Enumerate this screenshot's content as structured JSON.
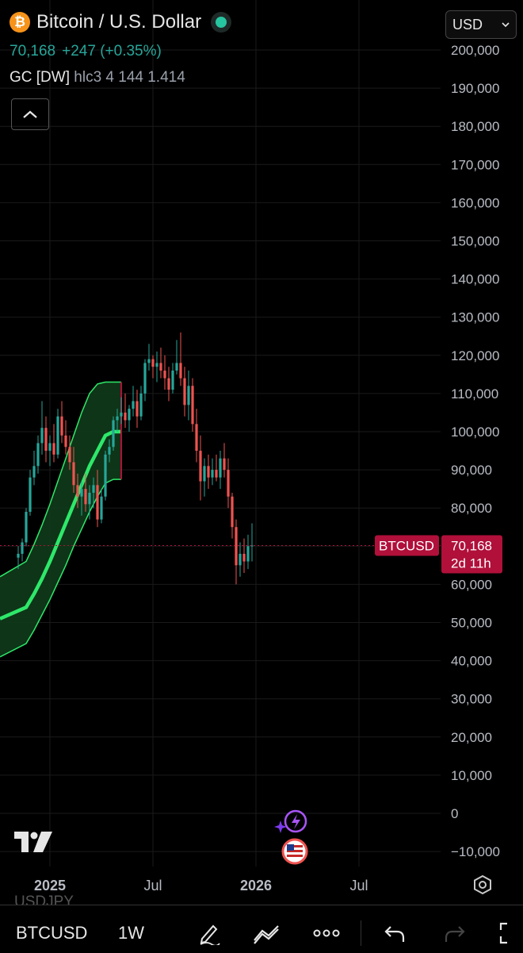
{
  "header": {
    "logo_glyph": "₿",
    "title": "Bitcoin / U.S. Dollar",
    "last_price": "70,168",
    "change": "+247 (+0.35%)",
    "indicator_name": "GC [DW]",
    "indicator_params": "hlc3 4 144 1.414",
    "currency": "USD",
    "icons": [
      "bitcoin-logo-icon",
      "live-status-dot-icon",
      "chevron-up-icon",
      "chevron-down-icon"
    ]
  },
  "chart_data": {
    "type": "candlestick",
    "symbol": "BTCUSD",
    "interval": "1W",
    "y_ticks": [
      "200,000",
      "190,000",
      "180,000",
      "170,000",
      "160,000",
      "150,000",
      "140,000",
      "130,000",
      "120,000",
      "110,000",
      "100,000",
      "90,000",
      "80,000",
      "70,000",
      "60,000",
      "50,000",
      "40,000",
      "30,000",
      "20,000",
      "10,000",
      "0",
      "−10,000"
    ],
    "ylim": [
      -13000,
      204000
    ],
    "x_ticks": [
      {
        "label": "2025",
        "week": 0,
        "bold": true
      },
      {
        "label": "Jul",
        "week": 26,
        "bold": false
      },
      {
        "label": "2026",
        "week": 52,
        "bold": true
      },
      {
        "label": "Jul",
        "week": 78,
        "bold": false
      }
    ],
    "last_price_label": "70,168",
    "countdown": "2d 11h",
    "symbol_tag": "BTCUSD",
    "last_close": 70168,
    "colors": {
      "up": "#26a69a",
      "down": "#ef5350",
      "band": "#2ee86a",
      "band_fill": "#0f3b1a",
      "price_tag": "#b0103a"
    },
    "band": {
      "week_start": -8,
      "week_step": 2,
      "mid": [
        51000,
        54000,
        57500,
        61500,
        66000,
        71000,
        76000,
        81000,
        86000,
        91000,
        95000,
        99000,
        100000,
        100000
      ],
      "upper": [
        62000,
        66000,
        70500,
        75500,
        81000,
        87000,
        93000,
        99000,
        105000,
        110000,
        112500,
        113000,
        113000,
        113000
      ],
      "lower": [
        41000,
        44500,
        48000,
        52000,
        56000,
        60500,
        65000,
        70000,
        74500,
        79000,
        83000,
        86500,
        87500,
        87500
      ]
    },
    "candles": [
      [
        -8,
        67000,
        70000,
        64000,
        68000
      ],
      [
        -7,
        68000,
        72000,
        66000,
        71000
      ],
      [
        -6,
        71000,
        80000,
        70000,
        79000
      ],
      [
        -5,
        79000,
        90000,
        78000,
        88000
      ],
      [
        -4,
        88000,
        95000,
        86000,
        91000
      ],
      [
        -3,
        91000,
        99000,
        89000,
        97000
      ],
      [
        -2,
        97000,
        108000,
        94000,
        101000
      ],
      [
        -1,
        101000,
        104000,
        92000,
        95000
      ],
      [
        0,
        95000,
        99000,
        91000,
        97000
      ],
      [
        1,
        97000,
        102000,
        92000,
        94000
      ],
      [
        2,
        94000,
        106000,
        93000,
        104000
      ],
      [
        3,
        104000,
        108000,
        97000,
        99000
      ],
      [
        4,
        99000,
        103000,
        94000,
        96000
      ],
      [
        5,
        96000,
        99000,
        90000,
        92000
      ],
      [
        6,
        92000,
        96000,
        84000,
        86000
      ],
      [
        7,
        86000,
        89000,
        80000,
        83000
      ],
      [
        8,
        83000,
        87000,
        78000,
        85000
      ],
      [
        9,
        85000,
        89000,
        79000,
        81000
      ],
      [
        10,
        81000,
        86000,
        77000,
        84000
      ],
      [
        11,
        84000,
        88000,
        80000,
        86000
      ],
      [
        12,
        86000,
        90000,
        75000,
        77000
      ],
      [
        13,
        77000,
        85000,
        76000,
        83000
      ],
      [
        14,
        83000,
        95000,
        82000,
        94000
      ],
      [
        15,
        94000,
        98000,
        92000,
        96000
      ],
      [
        16,
        96000,
        104000,
        95000,
        103000
      ],
      [
        17,
        103000,
        106000,
        100000,
        104000
      ],
      [
        18,
        104000,
        109000,
        102000,
        105000
      ],
      [
        19,
        105000,
        110000,
        101000,
        103000
      ],
      [
        20,
        103000,
        107000,
        100000,
        106000
      ],
      [
        21,
        106000,
        112000,
        104000,
        108000
      ],
      [
        22,
        108000,
        111000,
        101000,
        104000
      ],
      [
        23,
        104000,
        112000,
        103000,
        110000
      ],
      [
        24,
        110000,
        119000,
        108000,
        118000
      ],
      [
        25,
        118000,
        123000,
        116000,
        119000
      ],
      [
        26,
        119000,
        120000,
        114000,
        117000
      ],
      [
        27,
        117000,
        121000,
        113000,
        118000
      ],
      [
        28,
        118000,
        122000,
        114000,
        116000
      ],
      [
        29,
        116000,
        120000,
        111000,
        114000
      ],
      [
        30,
        114000,
        117000,
        108000,
        111000
      ],
      [
        31,
        111000,
        118000,
        110000,
        116000
      ],
      [
        32,
        116000,
        124000,
        115000,
        118000
      ],
      [
        33,
        118000,
        126000,
        112000,
        114000
      ],
      [
        34,
        114000,
        117000,
        104000,
        107000
      ],
      [
        35,
        107000,
        116000,
        103000,
        112000
      ],
      [
        36,
        112000,
        114000,
        100000,
        102000
      ],
      [
        37,
        102000,
        106000,
        92000,
        95000
      ],
      [
        38,
        95000,
        99000,
        82000,
        87000
      ],
      [
        39,
        87000,
        93000,
        83000,
        91000
      ],
      [
        40,
        91000,
        94000,
        85000,
        88000
      ],
      [
        41,
        88000,
        93000,
        86000,
        90000
      ],
      [
        42,
        90000,
        94000,
        87000,
        88000
      ],
      [
        43,
        88000,
        95000,
        85000,
        93000
      ],
      [
        44,
        93000,
        97000,
        88000,
        90000
      ],
      [
        45,
        90000,
        93000,
        80000,
        83000
      ],
      [
        46,
        83000,
        84000,
        72000,
        75000
      ],
      [
        47,
        75000,
        77000,
        60000,
        65000
      ],
      [
        48,
        65000,
        71000,
        62000,
        68000
      ],
      [
        49,
        68000,
        72000,
        63000,
        66000
      ],
      [
        50,
        66000,
        73000,
        64000,
        70000
      ],
      [
        51,
        70000,
        76000,
        66000,
        70168
      ]
    ]
  },
  "bottom_bar": {
    "ghost_symbol": "USDJPY",
    "symbol": "BTCUSD",
    "interval": "1W",
    "icons": [
      "pencil-draw-icon",
      "multi-line-drawing-icon",
      "more-dots-icon",
      "undo-icon",
      "redo-icon",
      "fullscreen-icon"
    ]
  },
  "overlays": {
    "icons": [
      "tradingview-logo-icon",
      "sparkle-lightning-event-icon",
      "us-flag-event-icon",
      "chart-settings-icon"
    ]
  }
}
